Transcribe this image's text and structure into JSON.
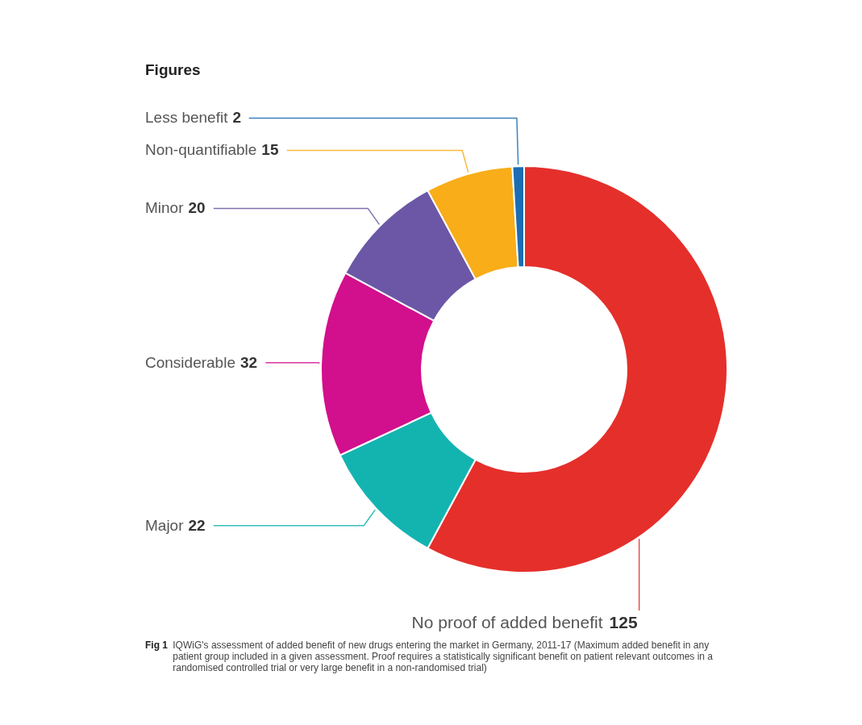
{
  "chart_data": {
    "type": "donut",
    "title": "Figures",
    "categories": [
      "No proof of added benefit",
      "Major",
      "Considerable",
      "Minor",
      "Non-quantifiable",
      "Less benefit"
    ],
    "values": [
      125,
      22,
      32,
      20,
      15,
      2
    ],
    "colors": [
      "#e52f2b",
      "#13b4b0",
      "#d20f8c",
      "#6b57a6",
      "#f8ad19",
      "#1b6db4"
    ],
    "data_labels": true,
    "annotations": [
      "Fig 1 IQWiG's assessment of added benefit of new drugs entering the market in Germany, 2011-17 (Maximum added benefit in any patient group included in a given assessment. Proof requires a statistically significant benefit on patient relevant outcomes in a randomised controlled trial or very large benefit in a non-randomised trial)"
    ]
  }
}
